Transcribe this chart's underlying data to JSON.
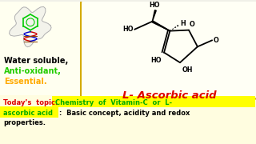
{
  "bg_color": "#f0f0e8",
  "mol_box_bg": "#fffff5",
  "mol_box_border": "#d4aa00",
  "left_bg": "#fffff0",
  "text_water": "Water soluble,",
  "text_antioxidant": "Anti-oxidant,",
  "text_essential": "Essential.",
  "color_water": "#000000",
  "color_antioxidant": "#22cc00",
  "color_essential": "#ffaa00",
  "label_ascorbic": "L- Ascorbic acid",
  "color_ascorbic": "#dd0000",
  "bottom_bg": "#fffde0",
  "highlight_bg": "#ffff00",
  "color_today": "#dd0000",
  "color_highlight_text": "#00aa00",
  "color_body": "#000000",
  "line1_prefix": "Today’s  topic: ",
  "line1_highlight": "Chemistry  of  Vitamin-C  or  L-",
  "line2_highlight": "ascorbic acid",
  "line2_body": ":  Basic concept, acidity and redox",
  "line3_body": "properties."
}
